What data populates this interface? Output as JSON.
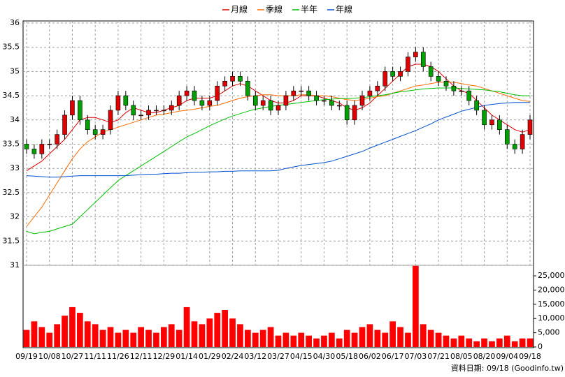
{
  "chart_data": {
    "type": "candlestick",
    "categories": [
      "09/19",
      null,
      null,
      "10/08",
      null,
      null,
      "10/27",
      null,
      null,
      "11/11",
      null,
      null,
      "11/26",
      null,
      null,
      "12/11",
      null,
      null,
      "12/29",
      null,
      null,
      "01/14",
      null,
      null,
      "01/29",
      null,
      null,
      "02/24",
      null,
      null,
      "03/12",
      null,
      null,
      "03/27",
      null,
      null,
      "04/15",
      null,
      null,
      "04/30",
      null,
      null,
      "05/18",
      null,
      null,
      "06/02",
      null,
      null,
      "06/17",
      null,
      null,
      "07/03",
      null,
      null,
      "07/21",
      null,
      null,
      "08/05",
      null,
      null,
      "08/20",
      null,
      null,
      "09/04",
      null,
      null,
      "09/18"
    ],
    "open": [
      33.5,
      33.4,
      33.3,
      33.5,
      33.5,
      33.7,
      34.1,
      34.4,
      34.0,
      33.8,
      33.7,
      33.8,
      34.2,
      34.5,
      34.3,
      34.1,
      34.1,
      34.2,
      34.2,
      34.2,
      34.3,
      34.5,
      34.6,
      34.4,
      34.3,
      34.4,
      34.7,
      34.8,
      34.9,
      34.8,
      34.5,
      34.3,
      34.4,
      34.2,
      34.3,
      34.5,
      34.6,
      34.6,
      34.5,
      34.4,
      34.4,
      34.3,
      34.3,
      34.0,
      34.3,
      34.5,
      34.6,
      34.7,
      35.0,
      34.9,
      35.0,
      35.3,
      35.4,
      35.1,
      34.9,
      34.8,
      34.7,
      34.6,
      34.6,
      34.4,
      34.2,
      33.9,
      34.0,
      33.8,
      33.5,
      33.4,
      33.7
    ],
    "high": [
      33.6,
      33.5,
      33.6,
      33.6,
      33.8,
      34.2,
      34.5,
      34.5,
      34.1,
      33.9,
      33.9,
      34.3,
      34.6,
      34.6,
      34.4,
      34.2,
      34.3,
      34.3,
      34.3,
      34.4,
      34.6,
      34.7,
      34.7,
      34.5,
      34.5,
      34.8,
      34.9,
      35.0,
      35.0,
      34.9,
      34.6,
      34.5,
      34.5,
      34.4,
      34.6,
      34.7,
      34.7,
      34.7,
      34.6,
      34.5,
      34.5,
      34.4,
      34.4,
      34.4,
      34.6,
      34.7,
      34.8,
      35.1,
      35.1,
      35.1,
      35.4,
      35.5,
      35.5,
      35.2,
      35.0,
      34.9,
      34.8,
      34.7,
      34.7,
      34.5,
      34.3,
      34.1,
      34.1,
      33.9,
      33.6,
      33.8,
      34.1
    ],
    "low": [
      33.3,
      33.2,
      33.2,
      33.4,
      33.4,
      33.6,
      34.0,
      33.9,
      33.7,
      33.6,
      33.6,
      33.7,
      34.1,
      34.2,
      34.0,
      34.0,
      34.0,
      34.1,
      34.1,
      34.1,
      34.2,
      34.4,
      34.3,
      34.2,
      34.2,
      34.3,
      34.6,
      34.7,
      34.7,
      34.4,
      34.2,
      34.2,
      34.1,
      34.1,
      34.2,
      34.4,
      34.5,
      34.4,
      34.3,
      34.3,
      34.2,
      34.2,
      33.9,
      33.9,
      34.2,
      34.4,
      34.5,
      34.6,
      34.8,
      34.8,
      34.9,
      35.2,
      35.0,
      34.8,
      34.7,
      34.6,
      34.5,
      34.5,
      34.3,
      34.1,
      33.8,
      33.8,
      33.7,
      33.4,
      33.3,
      33.3,
      33.6
    ],
    "close": [
      33.4,
      33.3,
      33.5,
      33.5,
      33.7,
      34.1,
      34.4,
      34.0,
      33.8,
      33.7,
      33.8,
      34.2,
      34.5,
      34.3,
      34.1,
      34.1,
      34.2,
      34.2,
      34.2,
      34.3,
      34.5,
      34.6,
      34.4,
      34.3,
      34.4,
      34.7,
      34.8,
      34.9,
      34.8,
      34.5,
      34.3,
      34.4,
      34.2,
      34.3,
      34.5,
      34.6,
      34.6,
      34.5,
      34.4,
      34.4,
      34.3,
      34.3,
      34.0,
      34.3,
      34.5,
      34.6,
      34.7,
      35.0,
      34.9,
      35.0,
      35.3,
      35.4,
      35.1,
      34.9,
      34.8,
      34.7,
      34.6,
      34.6,
      34.4,
      34.2,
      33.9,
      34.0,
      33.8,
      33.5,
      33.4,
      33.7,
      34.0
    ],
    "up_color": "#e00000",
    "down_color": "#00a000",
    "ylim": [
      31,
      36
    ],
    "yticks": [
      31,
      31.5,
      32,
      32.5,
      33,
      33.5,
      34,
      34.5,
      35,
      35.5,
      36
    ],
    "grid": true,
    "legend": "top",
    "series": [
      {
        "name": "月線",
        "color": "#e00000",
        "values": [
          32.95,
          33.05,
          33.15,
          33.3,
          33.45,
          33.6,
          33.8,
          34.0,
          34.05,
          34.05,
          34.0,
          33.95,
          34.0,
          34.15,
          34.25,
          34.2,
          34.15,
          34.15,
          34.2,
          34.25,
          34.3,
          34.4,
          34.45,
          34.45,
          34.45,
          34.5,
          34.6,
          34.7,
          34.75,
          34.7,
          34.6,
          34.5,
          34.4,
          34.35,
          34.35,
          34.4,
          34.5,
          34.5,
          34.5,
          34.45,
          34.4,
          34.35,
          34.25,
          34.2,
          34.25,
          34.35,
          34.5,
          34.65,
          34.8,
          34.95,
          35.1,
          35.15,
          35.15,
          35.1,
          35.0,
          34.85,
          34.7,
          34.6,
          34.55,
          34.4,
          34.25,
          34.1,
          34.0,
          33.9,
          33.8,
          33.75,
          33.8
        ]
      },
      {
        "name": "季線",
        "color": "#ff6a00",
        "values": [
          31.8,
          32.0,
          32.2,
          32.45,
          32.7,
          32.95,
          33.2,
          33.4,
          33.55,
          33.65,
          33.75,
          33.8,
          33.85,
          33.9,
          33.95,
          34.0,
          34.05,
          34.1,
          34.12,
          34.15,
          34.18,
          34.2,
          34.22,
          34.25,
          34.28,
          34.3,
          34.35,
          34.4,
          34.45,
          34.48,
          34.5,
          34.52,
          34.52,
          34.5,
          34.5,
          34.5,
          34.52,
          34.52,
          34.5,
          34.5,
          34.48,
          34.45,
          34.42,
          34.4,
          34.42,
          34.45,
          34.48,
          34.5,
          34.55,
          34.6,
          34.65,
          34.7,
          34.72,
          34.75,
          34.78,
          34.78,
          34.78,
          34.75,
          34.72,
          34.7,
          34.65,
          34.6,
          34.55,
          34.5,
          34.45,
          34.4,
          34.38
        ]
      },
      {
        "name": "半年",
        "color": "#00c000",
        "values": [
          31.7,
          31.65,
          31.68,
          31.7,
          31.75,
          31.8,
          31.85,
          32.0,
          32.15,
          32.3,
          32.45,
          32.6,
          32.75,
          32.85,
          32.95,
          33.05,
          33.15,
          33.25,
          33.35,
          33.45,
          33.55,
          33.65,
          33.72,
          33.8,
          33.88,
          33.95,
          34.02,
          34.08,
          34.13,
          34.18,
          34.22,
          34.25,
          34.28,
          34.3,
          34.32,
          34.34,
          34.36,
          34.38,
          34.4,
          34.42,
          34.43,
          34.44,
          34.44,
          34.45,
          34.46,
          34.48,
          34.5,
          34.52,
          34.55,
          34.58,
          34.6,
          34.62,
          34.64,
          34.65,
          34.66,
          34.66,
          34.66,
          34.65,
          34.64,
          34.63,
          34.62,
          34.6,
          34.58,
          34.55,
          34.52,
          34.5,
          34.5
        ]
      },
      {
        "name": "年線",
        "color": "#0050d0",
        "values": [
          32.85,
          32.84,
          32.83,
          32.82,
          32.82,
          32.83,
          32.84,
          32.85,
          32.85,
          32.85,
          32.85,
          32.85,
          32.85,
          32.85,
          32.86,
          32.87,
          32.88,
          32.88,
          32.89,
          32.9,
          32.9,
          32.91,
          32.92,
          32.92,
          32.93,
          32.93,
          32.94,
          32.94,
          32.95,
          32.95,
          32.95,
          32.95,
          32.95,
          32.96,
          33.0,
          33.03,
          33.06,
          33.08,
          33.1,
          33.12,
          33.15,
          33.2,
          33.25,
          33.3,
          33.35,
          33.42,
          33.48,
          33.54,
          33.6,
          33.66,
          33.72,
          33.78,
          33.85,
          33.92,
          34.0,
          34.06,
          34.12,
          34.18,
          34.22,
          34.26,
          34.3,
          34.32,
          34.34,
          34.35,
          34.36,
          34.36,
          34.36
        ]
      }
    ],
    "volume": {
      "color": "#ff0000",
      "values": [
        6000,
        9000,
        7000,
        5000,
        8000,
        11000,
        14000,
        12000,
        9000,
        8000,
        6000,
        7000,
        5000,
        6000,
        5000,
        7000,
        6000,
        5000,
        7000,
        8000,
        6000,
        14000,
        9000,
        8000,
        10000,
        12000,
        13000,
        10000,
        8000,
        6000,
        5000,
        6000,
        7000,
        4000,
        5000,
        4000,
        5000,
        4000,
        3000,
        4000,
        5000,
        3000,
        6000,
        5000,
        7000,
        8000,
        6000,
        5000,
        9000,
        7000,
        5000,
        28500,
        8000,
        6000,
        5000,
        4000,
        3000,
        4000,
        3000,
        2000,
        3000,
        2000,
        3000,
        4000,
        2000,
        3000,
        3000
      ],
      "ylim": [
        0,
        28700
      ],
      "yticks": [
        0,
        {
          "value": 5000,
          "label": "5,000"
        },
        {
          "value": 10000,
          "label": "10,000"
        },
        {
          "value": 15000,
          "label": "15,000"
        },
        {
          "value": 20000,
          "label": "20,000"
        },
        {
          "value": 25000,
          "label": "25,000"
        }
      ]
    },
    "footnote": "資料日期: 09/18 (Goodinfo.tw)"
  }
}
